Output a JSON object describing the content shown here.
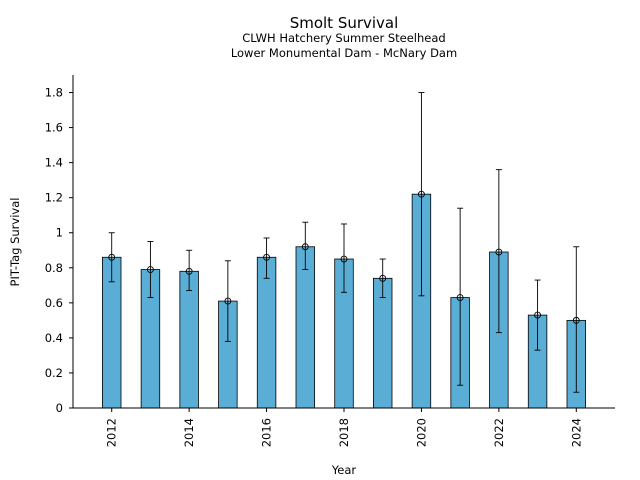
{
  "chart_data": {
    "type": "bar",
    "title": "Smolt Survival",
    "subtitle_lines": [
      "CLWH Hatchery Summer Steelhead",
      "Lower Monumental Dam - McNary Dam"
    ],
    "xlabel": "Year",
    "ylabel": "PIT-Tag Survival",
    "ylim": [
      0,
      1.9
    ],
    "yticks": [
      {
        "value": 0,
        "label": "0"
      },
      {
        "value": 0.2,
        "label": "0.2"
      },
      {
        "value": 0.4,
        "label": "0.4"
      },
      {
        "value": 0.6,
        "label": "0.6"
      },
      {
        "value": 0.8,
        "label": "0.8"
      },
      {
        "value": 1.0,
        "label": "1"
      },
      {
        "value": 1.2,
        "label": "1.2"
      },
      {
        "value": 1.4,
        "label": "1.4"
      },
      {
        "value": 1.6,
        "label": "1.6"
      },
      {
        "value": 1.8,
        "label": "1.8"
      }
    ],
    "xlim": [
      2011,
      2025
    ],
    "xticks": [
      {
        "value": 2012,
        "label": "2012"
      },
      {
        "value": 2014,
        "label": "2014"
      },
      {
        "value": 2016,
        "label": "2016"
      },
      {
        "value": 2018,
        "label": "2018"
      },
      {
        "value": 2020,
        "label": "2020"
      },
      {
        "value": 2022,
        "label": "2022"
      },
      {
        "value": 2024,
        "label": "2024"
      }
    ],
    "bar_color": "#5aaed6",
    "bar_edge_color": "#000000",
    "grid": false,
    "points": [
      {
        "x": 2012,
        "y": 0.86,
        "lo": 0.72,
        "hi": 1.0
      },
      {
        "x": 2013,
        "y": 0.79,
        "lo": 0.63,
        "hi": 0.95
      },
      {
        "x": 2014,
        "y": 0.78,
        "lo": 0.67,
        "hi": 0.9
      },
      {
        "x": 2015,
        "y": 0.61,
        "lo": 0.38,
        "hi": 0.84
      },
      {
        "x": 2016,
        "y": 0.86,
        "lo": 0.74,
        "hi": 0.97
      },
      {
        "x": 2017,
        "y": 0.92,
        "lo": 0.79,
        "hi": 1.06
      },
      {
        "x": 2018,
        "y": 0.85,
        "lo": 0.66,
        "hi": 1.05
      },
      {
        "x": 2019,
        "y": 0.74,
        "lo": 0.63,
        "hi": 0.85
      },
      {
        "x": 2020,
        "y": 1.22,
        "lo": 0.64,
        "hi": 1.8
      },
      {
        "x": 2021,
        "y": 0.63,
        "lo": 0.13,
        "hi": 1.14
      },
      {
        "x": 2022,
        "y": 0.89,
        "lo": 0.43,
        "hi": 1.36
      },
      {
        "x": 2023,
        "y": 0.53,
        "lo": 0.33,
        "hi": 0.73
      },
      {
        "x": 2024,
        "y": 0.5,
        "lo": 0.09,
        "hi": 0.92
      }
    ]
  }
}
